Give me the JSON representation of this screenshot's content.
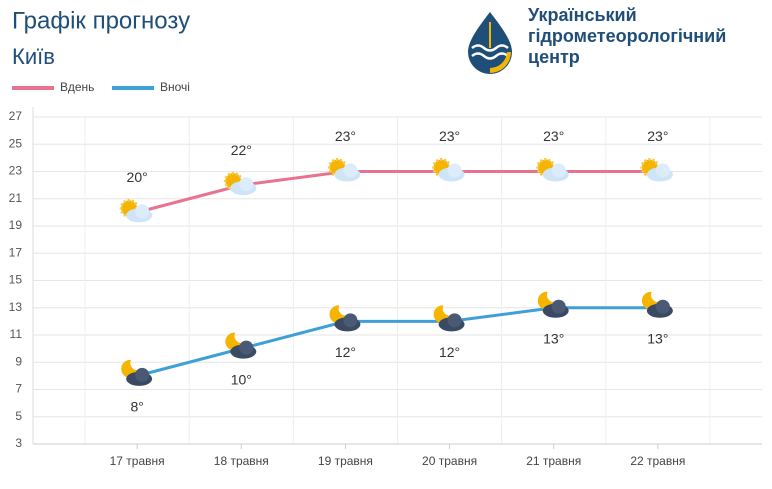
{
  "logo": {
    "lines": [
      "Український",
      "гідрометеорологічний",
      "центр"
    ]
  },
  "chart_data": {
    "type": "line",
    "title": "Графік прогнозу",
    "subtitle": "Київ",
    "categories": [
      "17 травня",
      "18 травня",
      "19 травня",
      "20 травня",
      "21 травня",
      "22 травня"
    ],
    "series": [
      {
        "name": "Вдень",
        "color": "#e8738f",
        "values": [
          20,
          22,
          23,
          23,
          23,
          23
        ],
        "value_labels": [
          "20°",
          "22°",
          "23°",
          "23°",
          "23°",
          "23°"
        ]
      },
      {
        "name": "Вночі",
        "color": "#3fa0d8",
        "values": [
          8,
          10,
          12,
          12,
          13,
          13
        ],
        "value_labels": [
          "8°",
          "10°",
          "12°",
          "12°",
          "13°",
          "13°"
        ]
      }
    ],
    "ylim": [
      3,
      27
    ],
    "yticks": [
      3,
      5,
      7,
      9,
      11,
      13,
      15,
      17,
      19,
      21,
      23,
      25,
      27
    ],
    "grid": true
  }
}
